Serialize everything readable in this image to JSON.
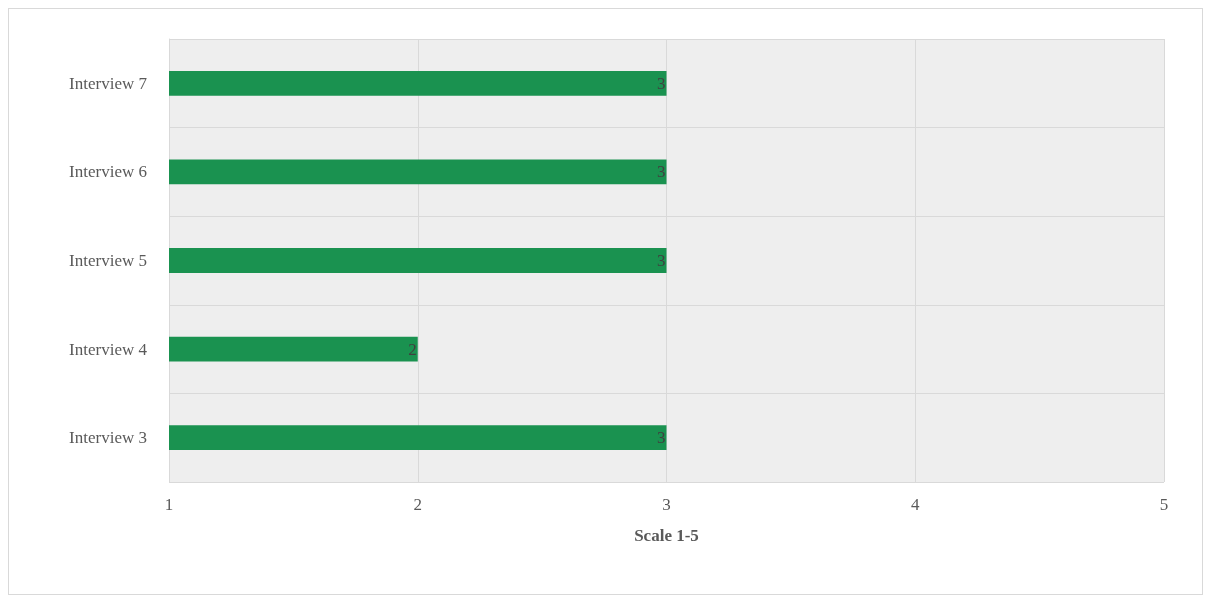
{
  "chart_data": {
    "type": "bar",
    "orientation": "horizontal",
    "xlabel": "Scale 1-5",
    "categories": [
      "Interview 7",
      "Interview 6",
      "Interview 5",
      "Interview 4",
      "Interview 3"
    ],
    "values": [
      3,
      3,
      3,
      2,
      3
    ],
    "color": "#1a9250",
    "xlim": [
      1,
      5
    ],
    "xticks": [
      1,
      2,
      3,
      4,
      5
    ],
    "grid": true,
    "data_labels": true
  }
}
